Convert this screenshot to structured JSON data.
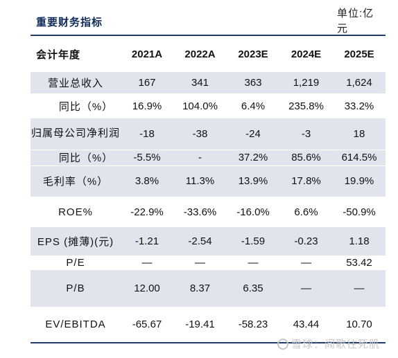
{
  "title": "重要财务指标",
  "unit": "单位:亿元",
  "header": {
    "label": "会计年度",
    "years": [
      "2021A",
      "2022A",
      "2023E",
      "2024E",
      "2025E"
    ]
  },
  "rows": [
    {
      "label": "营业总收入",
      "values": [
        "167",
        "341",
        "363",
        "1,219",
        "1,624"
      ]
    },
    {
      "label": "同比（%）",
      "values": [
        "16.9%",
        "104.0%",
        "6.4%",
        "235.8%",
        "33.2%"
      ]
    },
    {
      "label": "归属母公司净利润",
      "values": [
        "-18",
        "-38",
        "-24",
        "-3",
        "18"
      ]
    },
    {
      "label": "同比（%）",
      "values": [
        "-5.5%",
        "-",
        "37.2%",
        "85.6%",
        "614.5%"
      ]
    },
    {
      "label": "毛利率（%）",
      "values": [
        "3.8%",
        "11.3%",
        "13.9%",
        "17.8%",
        "19.9%"
      ]
    },
    {
      "label": "ROE%",
      "values": [
        "-22.9%",
        "-33.6%",
        "-16.0%",
        "6.6%",
        "-50.9%"
      ]
    },
    {
      "label": "EPS (摊薄)(元)",
      "values": [
        "-1.21",
        "-2.54",
        "-1.59",
        "-0.23",
        "1.18"
      ]
    },
    {
      "label": "P/E",
      "values": [
        "—",
        "—",
        "—",
        "—",
        "53.42"
      ]
    },
    {
      "label": "P/B",
      "values": [
        "12.00",
        "8.37",
        "6.35",
        "—",
        "—"
      ]
    },
    {
      "label": "EV/EBITDA",
      "values": [
        "-65.67",
        "-19.41",
        "-58.23",
        "43.44",
        "10.70"
      ]
    }
  ],
  "watermark": "雪球：闻歌往死肌"
}
